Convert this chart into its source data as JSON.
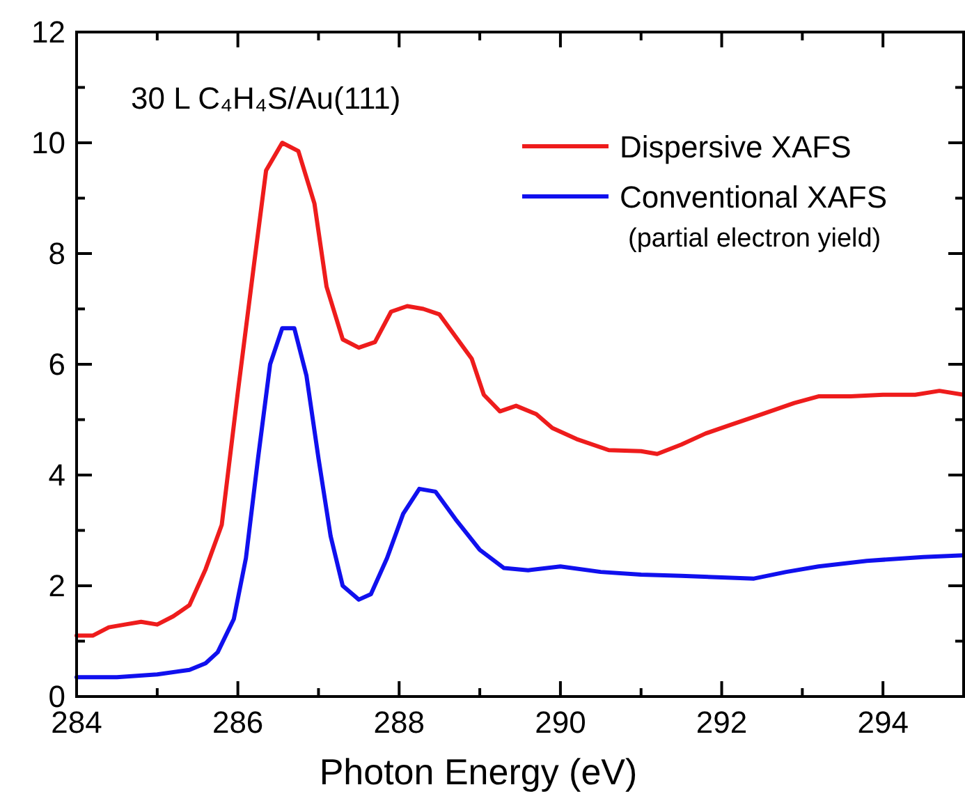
{
  "chart_data": {
    "type": "line",
    "xlabel": "Photon Energy (eV)",
    "annotations": [
      "30 L C₄H₄S/Au(111)"
    ],
    "xlim": [
      284,
      295
    ],
    "xticks": [
      284,
      {
        "value": 285,
        "label": null
      },
      286,
      {
        "value": 287,
        "label": null
      },
      288,
      {
        "value": 289,
        "label": null
      },
      290,
      {
        "value": 291,
        "label": null
      },
      292,
      {
        "value": 293,
        "label": null
      },
      294
    ],
    "ylim": [
      0,
      12
    ],
    "yticks": [
      0,
      {
        "value": 1,
        "label": null
      },
      2,
      {
        "value": 3,
        "label": null
      },
      4,
      {
        "value": 5,
        "label": null
      },
      6,
      {
        "value": 7,
        "label": null
      },
      8,
      {
        "value": 9,
        "label": null
      },
      10,
      {
        "value": 11,
        "label": null
      },
      12
    ],
    "legend": "top right",
    "grid": false,
    "marker": "none",
    "line_style": "solid",
    "series": [
      {
        "name": "Dispersive XAFS",
        "color": "#ee1c1c",
        "x": [
          284.0,
          284.2,
          284.4,
          284.6,
          284.8,
          285.0,
          285.2,
          285.4,
          285.6,
          285.8,
          286.0,
          286.2,
          286.35,
          286.55,
          286.75,
          286.95,
          287.1,
          287.3,
          287.5,
          287.7,
          287.9,
          288.1,
          288.3,
          288.5,
          288.7,
          288.9,
          289.05,
          289.25,
          289.45,
          289.7,
          289.9,
          290.2,
          290.6,
          291.0,
          291.2,
          291.5,
          291.8,
          292.1,
          292.5,
          292.9,
          293.2,
          293.6,
          294.0,
          294.4,
          294.7,
          295.0
        ],
        "values": [
          1.1,
          1.1,
          1.25,
          1.3,
          1.35,
          1.3,
          1.45,
          1.65,
          2.3,
          3.1,
          5.5,
          7.8,
          9.5,
          10.0,
          9.85,
          8.9,
          7.4,
          6.45,
          6.3,
          6.4,
          6.95,
          7.05,
          7.0,
          6.9,
          6.5,
          6.1,
          5.45,
          5.15,
          5.25,
          5.1,
          4.85,
          4.65,
          4.45,
          4.43,
          4.38,
          4.55,
          4.75,
          4.9,
          5.1,
          5.3,
          5.42,
          5.42,
          5.45,
          5.45,
          5.52,
          5.45
        ]
      },
      {
        "name": "Conventional XAFS\n(partial electron yield)",
        "color": "#1010ee",
        "x": [
          284.0,
          284.5,
          285.0,
          285.4,
          285.6,
          285.75,
          285.95,
          286.1,
          286.25,
          286.4,
          286.55,
          286.7,
          286.85,
          287.0,
          287.15,
          287.3,
          287.5,
          287.65,
          287.85,
          288.05,
          288.25,
          288.45,
          288.7,
          289.0,
          289.3,
          289.6,
          290.0,
          290.5,
          291.0,
          291.5,
          292.0,
          292.4,
          292.8,
          293.2,
          293.8,
          294.5,
          295.0
        ],
        "values": [
          0.35,
          0.35,
          0.4,
          0.48,
          0.6,
          0.8,
          1.4,
          2.5,
          4.3,
          6.0,
          6.65,
          6.65,
          5.8,
          4.3,
          2.9,
          2.0,
          1.75,
          1.85,
          2.5,
          3.3,
          3.75,
          3.7,
          3.2,
          2.65,
          2.32,
          2.28,
          2.35,
          2.25,
          2.2,
          2.18,
          2.15,
          2.13,
          2.25,
          2.35,
          2.45,
          2.52,
          2.55
        ]
      }
    ]
  }
}
